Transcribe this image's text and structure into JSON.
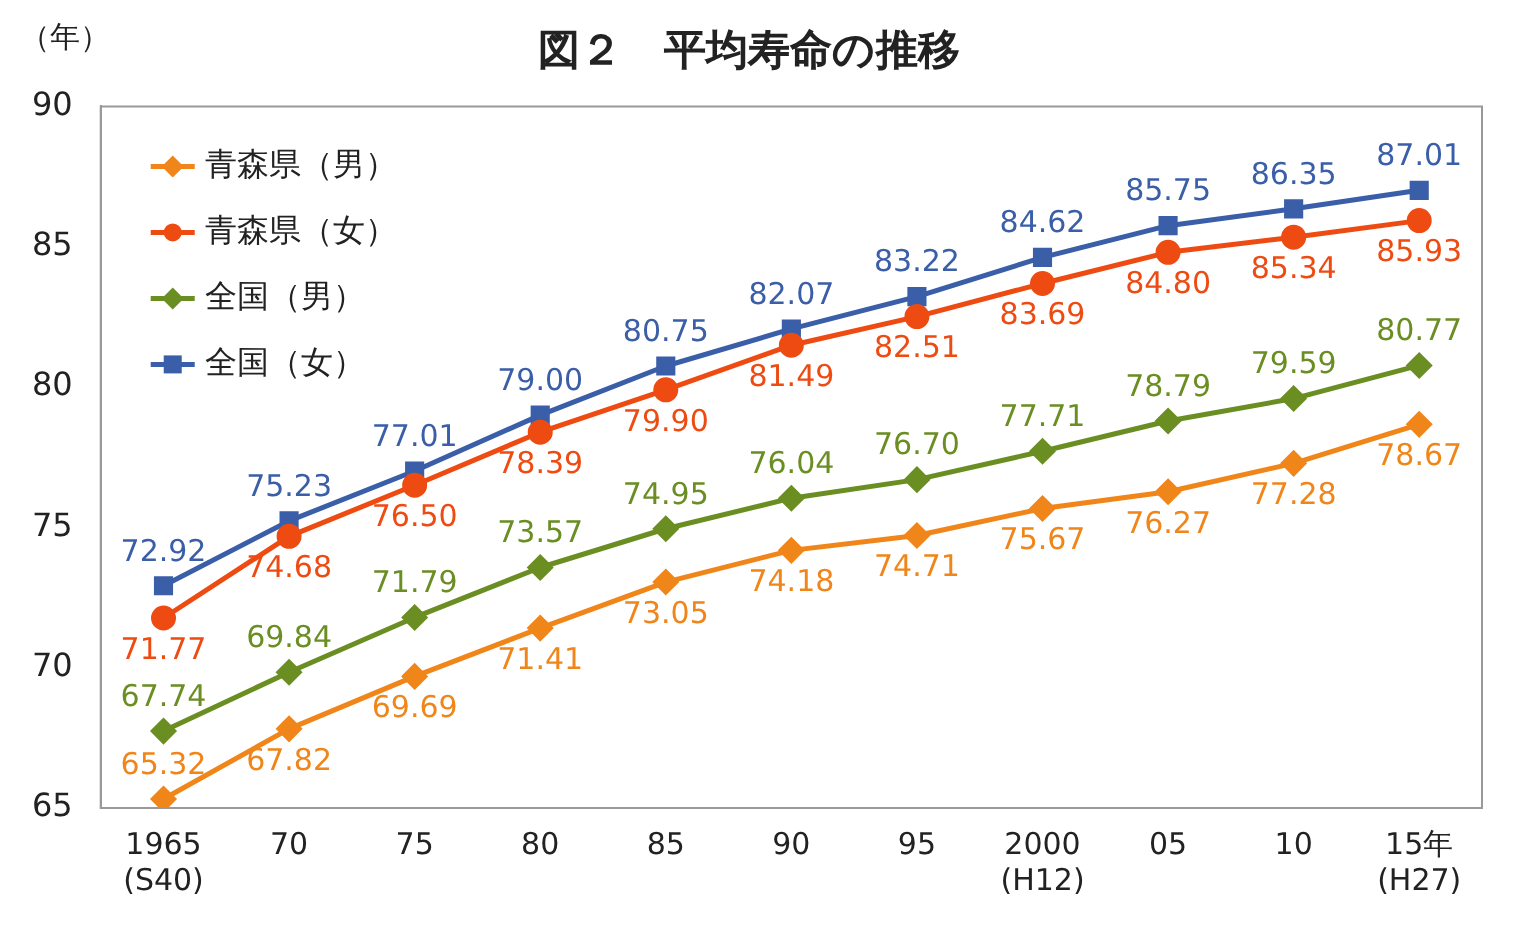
{
  "chart_data": {
    "type": "line",
    "title": "図２　平均寿命の推移",
    "ylabel": "（年）",
    "categories": [
      "1965\n(S40)",
      "70",
      "75",
      "80",
      "85",
      "90",
      "95",
      "2000\n(H12)",
      "05",
      "10",
      "15年\n(H27)"
    ],
    "series": [
      {
        "name": "青森県（男）",
        "color": "#f0861a",
        "marker": "diamond",
        "values": [
          65.32,
          67.82,
          69.69,
          71.41,
          73.05,
          74.18,
          74.71,
          75.67,
          76.27,
          77.28,
          78.67
        ],
        "value_labels": [
          "65.32",
          "67.82",
          "69.69",
          "71.41",
          "73.05",
          "74.18",
          "74.71",
          "75.67",
          "76.27",
          "77.28",
          "78.67"
        ]
      },
      {
        "name": "青森県（女）",
        "color": "#ee4b12",
        "marker": "circle",
        "values": [
          71.77,
          74.68,
          76.5,
          78.39,
          79.9,
          81.49,
          82.51,
          83.69,
          84.8,
          85.34,
          85.93
        ],
        "value_labels": [
          "71.77",
          "74.68",
          "76.50",
          "78.39",
          "79.90",
          "81.49",
          "82.51",
          "83.69",
          "84.80",
          "85.34",
          "85.93"
        ]
      },
      {
        "name": "全国（男）",
        "color": "#6b8e23",
        "marker": "diamond",
        "values": [
          67.74,
          69.84,
          71.79,
          73.57,
          74.95,
          76.04,
          76.7,
          77.71,
          78.79,
          79.59,
          80.77
        ],
        "value_labels": [
          "67.74",
          "69.84",
          "71.79",
          "73.57",
          "74.95",
          "76.04",
          "76.70",
          "77.71",
          "78.79",
          "79.59",
          "80.77"
        ]
      },
      {
        "name": "全国（女）",
        "color": "#3a5ea8",
        "marker": "square",
        "values": [
          72.92,
          75.23,
          77.01,
          79.0,
          80.75,
          82.07,
          83.22,
          84.62,
          85.75,
          86.35,
          87.01
        ],
        "value_labels": [
          "72.92",
          "75.23",
          "77.01",
          "79.00",
          "80.75",
          "82.07",
          "83.22",
          "84.62",
          "85.75",
          "86.35",
          "87.01"
        ]
      }
    ],
    "ylim": [
      65,
      90
    ],
    "yticks": [
      65,
      70,
      75,
      80,
      85,
      90
    ],
    "grid": false,
    "legend": "top left",
    "line_style": "solid"
  }
}
